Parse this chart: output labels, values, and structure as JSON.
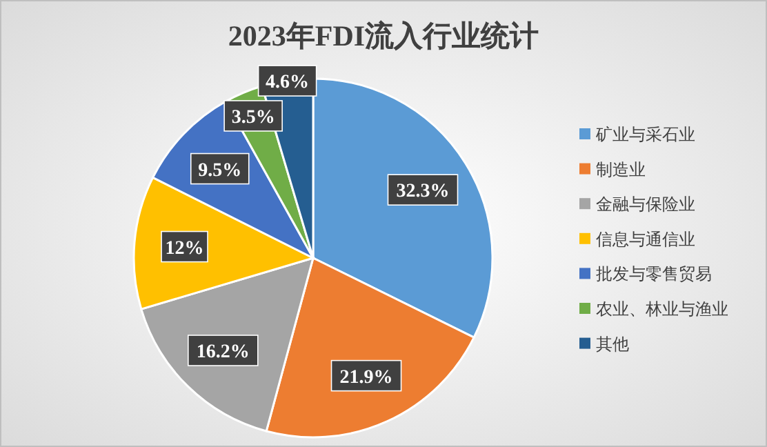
{
  "chart_data": {
    "type": "pie",
    "title": "2023年FDI流入行业统计",
    "categories": [
      "矿业与采石业",
      "制造业",
      "金融与保险业",
      "信息与通信业",
      "批发与零售贸易",
      "农业、林业与渔业",
      "其他"
    ],
    "values": [
      32.3,
      21.9,
      16.2,
      12,
      9.5,
      3.5,
      4.6
    ],
    "colors": [
      "#5b9bd5",
      "#ed7d31",
      "#a5a5a5",
      "#ffc000",
      "#4472c4",
      "#70ad47",
      "#255e91"
    ],
    "value_labels": [
      "32.3%",
      "21.9%",
      "16.2%",
      "12%",
      "9.5%",
      "3.5%",
      "4.6%"
    ],
    "legend": "right"
  }
}
